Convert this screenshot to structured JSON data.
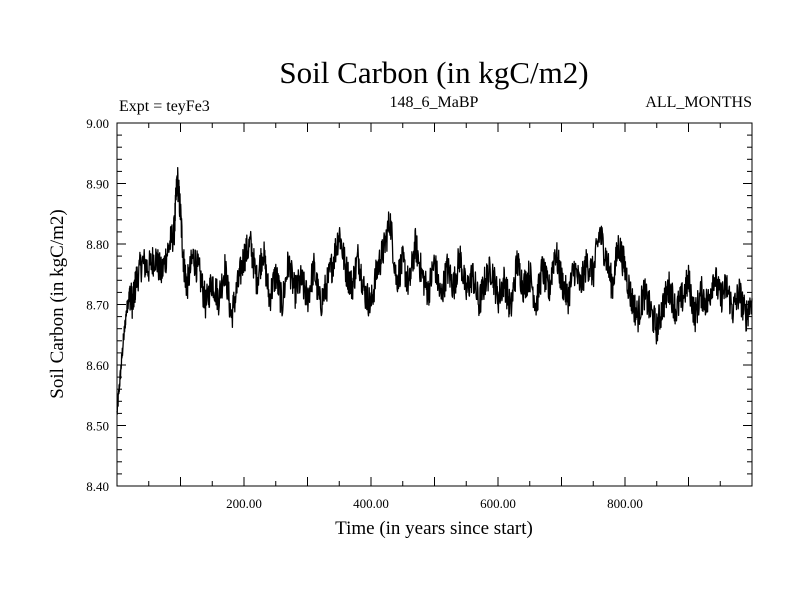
{
  "chart_data": {
    "type": "line",
    "title": "Soil Carbon (in kgC/m2)",
    "subtitle_left": "Expt = teyFe3",
    "subtitle_center": "148_6_MaBP",
    "subtitle_right": "ALL_MONTHS",
    "xlabel": "Time (in years since start)",
    "ylabel": "Soil Carbon (in kgC/m2)",
    "xlim": [
      0,
      1000
    ],
    "ylim": [
      8.4,
      9.0
    ],
    "x_ticks": [
      200,
      400,
      600,
      800
    ],
    "x_tick_labels": [
      "200.00",
      "400.00",
      "600.00",
      "800.00"
    ],
    "y_ticks": [
      8.4,
      8.5,
      8.6,
      8.7,
      8.8,
      8.9,
      9.0
    ],
    "y_tick_labels": [
      "8.40",
      "8.50",
      "8.60",
      "8.70",
      "8.80",
      "8.90",
      "9.00"
    ],
    "series": [
      {
        "name": "Soil Carbon",
        "color": "#000000",
        "x": [
          0,
          5,
          10,
          15,
          20,
          25,
          30,
          40,
          50,
          60,
          70,
          80,
          90,
          95,
          100,
          105,
          110,
          120,
          130,
          140,
          150,
          160,
          170,
          180,
          190,
          200,
          210,
          220,
          230,
          240,
          250,
          260,
          270,
          280,
          290,
          300,
          310,
          320,
          330,
          340,
          350,
          360,
          370,
          380,
          390,
          400,
          410,
          420,
          430,
          440,
          450,
          460,
          470,
          480,
          490,
          500,
          510,
          520,
          530,
          540,
          550,
          560,
          570,
          580,
          590,
          600,
          610,
          620,
          630,
          640,
          650,
          660,
          670,
          680,
          690,
          700,
          710,
          720,
          730,
          740,
          750,
          760,
          770,
          780,
          790,
          800,
          810,
          820,
          830,
          840,
          850,
          860,
          870,
          880,
          890,
          900,
          910,
          920,
          930,
          940,
          950,
          960,
          970,
          980,
          990,
          1000
        ],
        "values": [
          8.52,
          8.58,
          8.64,
          8.69,
          8.72,
          8.7,
          8.74,
          8.77,
          8.76,
          8.78,
          8.75,
          8.79,
          8.82,
          8.91,
          8.85,
          8.77,
          8.73,
          8.78,
          8.75,
          8.7,
          8.74,
          8.71,
          8.76,
          8.68,
          8.73,
          8.78,
          8.8,
          8.74,
          8.79,
          8.71,
          8.75,
          8.7,
          8.77,
          8.72,
          8.74,
          8.71,
          8.76,
          8.7,
          8.73,
          8.77,
          8.82,
          8.76,
          8.73,
          8.78,
          8.72,
          8.7,
          8.76,
          8.79,
          8.84,
          8.74,
          8.77,
          8.73,
          8.8,
          8.75,
          8.72,
          8.77,
          8.71,
          8.76,
          8.73,
          8.78,
          8.72,
          8.75,
          8.7,
          8.74,
          8.76,
          8.71,
          8.74,
          8.69,
          8.77,
          8.73,
          8.75,
          8.7,
          8.76,
          8.72,
          8.79,
          8.74,
          8.71,
          8.76,
          8.73,
          8.77,
          8.75,
          8.82,
          8.78,
          8.73,
          8.8,
          8.76,
          8.71,
          8.68,
          8.72,
          8.69,
          8.66,
          8.7,
          8.73,
          8.69,
          8.71,
          8.74,
          8.68,
          8.72,
          8.7,
          8.75,
          8.71,
          8.73,
          8.69,
          8.72,
          8.68,
          8.71
        ]
      }
    ],
    "grid": false,
    "legend": "none"
  }
}
